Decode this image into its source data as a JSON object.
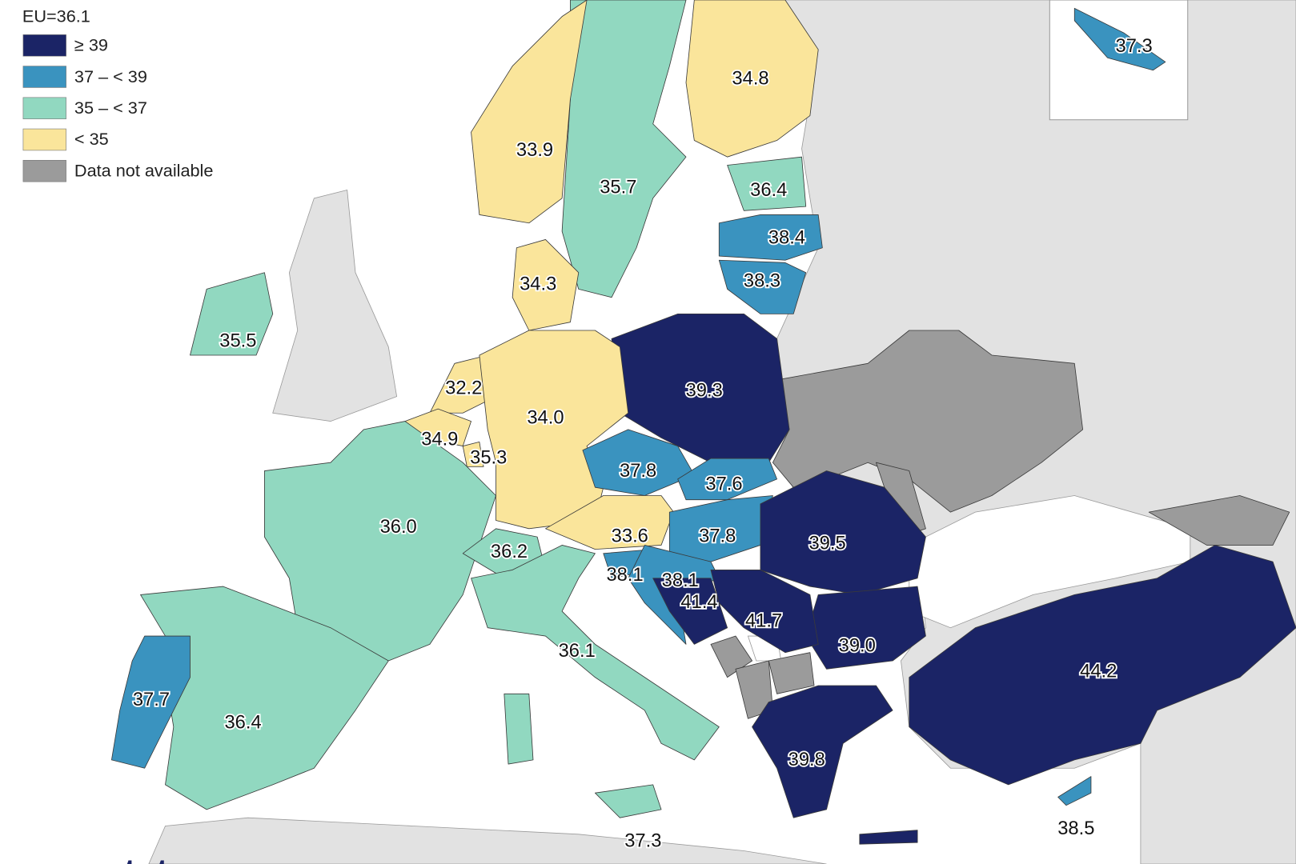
{
  "legend": {
    "title": "EU=36.1",
    "items": [
      {
        "label": "≥ 39",
        "color": "#1b2466"
      },
      {
        "label": "37 – < 39",
        "color": "#3a93bf"
      },
      {
        "label": "35 – < 37",
        "color": "#91d8c0"
      },
      {
        "label": "< 35",
        "color": "#fae59b"
      },
      {
        "label": "Data not available",
        "color": "#9b9b9b"
      }
    ]
  },
  "labels": [
    "34.8",
    "33.9",
    "35.7",
    "36.4",
    "38.4",
    "38.3",
    "34.3",
    "35.5",
    "39.3",
    "32.2",
    "34.0",
    "34.9",
    "35.3",
    "37.8",
    "37.6",
    "36.0",
    "33.6",
    "37.8",
    "39.5",
    "36.2",
    "38.1",
    "38.1",
    "41.4",
    "41.7",
    "39.0",
    "44.2",
    "36.1",
    "37.7",
    "36.4",
    "39.8",
    "37.3",
    "38.5",
    "37.3"
  ],
  "logo": "eurostat"
}
